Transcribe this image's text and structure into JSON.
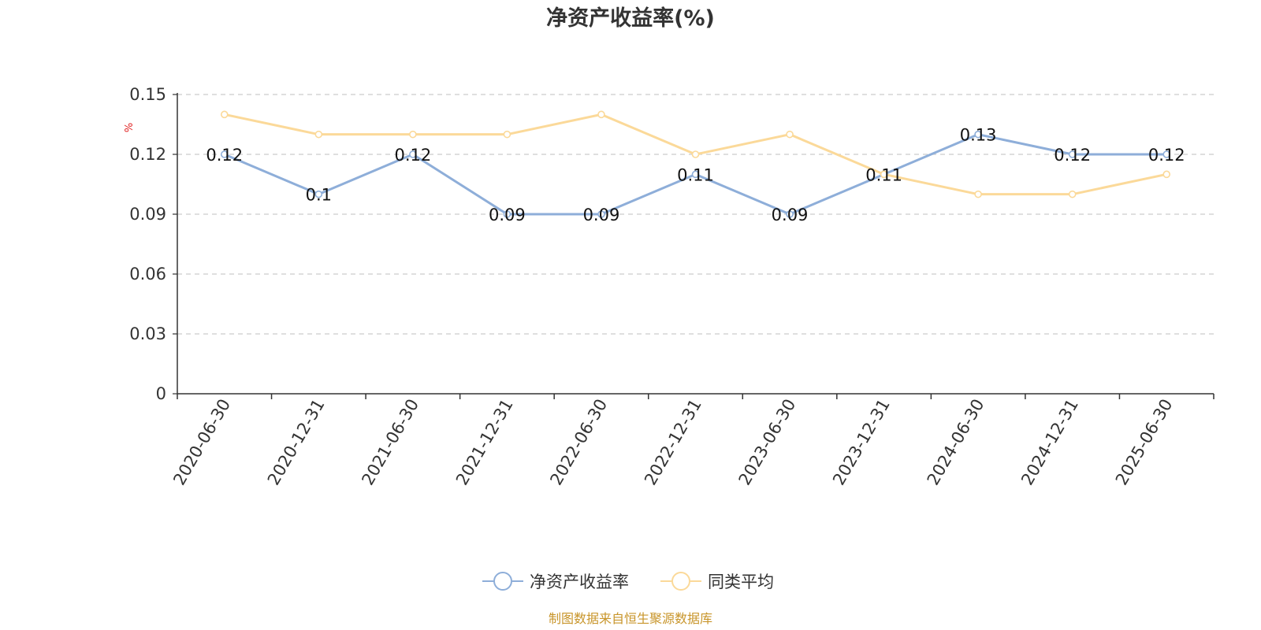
{
  "chart_data": {
    "type": "line",
    "title": "净资产收益率(%)",
    "ylabel": "%",
    "xlabel": "",
    "ylim": [
      0,
      0.15
    ],
    "yticks": [
      "0",
      "0.03",
      "0.06",
      "0.09",
      "0.12",
      "0.15"
    ],
    "ytick_values": [
      0,
      0.03,
      0.06,
      0.09,
      0.12,
      0.15
    ],
    "grid": true,
    "legend_position": "bottom-center",
    "categories": [
      "2020-06-30",
      "2020-12-31",
      "2021-06-30",
      "2021-12-31",
      "2022-06-30",
      "2022-12-31",
      "2023-06-30",
      "2023-12-31",
      "2024-06-30",
      "2024-12-31",
      "2025-06-30"
    ],
    "series": [
      {
        "name": "净资产收益率",
        "color": "#8eaed9",
        "values": [
          0.12,
          0.1,
          0.12,
          0.09,
          0.09,
          0.11,
          0.09,
          0.11,
          0.13,
          0.12,
          0.12
        ],
        "labels": [
          "0.12",
          "0.1",
          "0.12",
          "0.09",
          "0.09",
          "0.11",
          "0.09",
          "0.11",
          "0.13",
          "0.12",
          "0.12"
        ],
        "show_labels": true
      },
      {
        "name": "同类平均",
        "color": "#fbd999",
        "values": [
          0.14,
          0.13,
          0.13,
          0.13,
          0.14,
          0.12,
          0.13,
          0.11,
          0.1,
          0.1,
          0.11
        ],
        "show_labels": false
      }
    ]
  },
  "source_note": "制图数据来自恒生聚源数据库"
}
